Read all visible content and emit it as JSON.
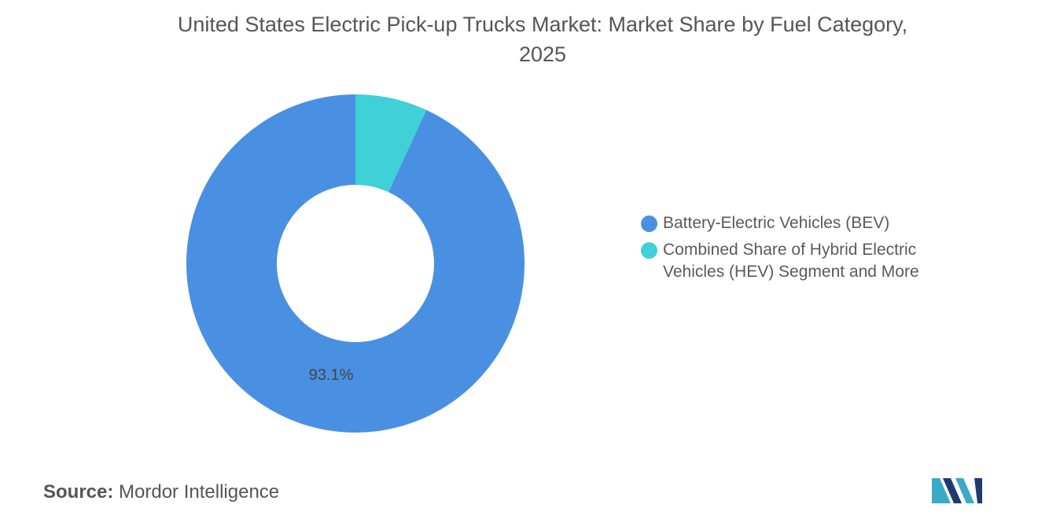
{
  "chart_data": {
    "type": "pie",
    "title_line1": "United States Electric Pick-up Trucks Market: Market Share by Fuel Category,",
    "title_line2": "2025",
    "categories": [
      "Battery-Electric Vehicles (BEV)",
      "Combined Share of Hybrid Electric Vehicles (HEV) Segment and More"
    ],
    "values": [
      93.1,
      6.9
    ],
    "data_labels": [
      "93.1%",
      ""
    ],
    "colors": [
      "#4a90e2",
      "#3fd0d8"
    ],
    "donut": true,
    "legend_position": "right"
  },
  "legend": {
    "items": [
      {
        "label": "Battery-Electric Vehicles (BEV)",
        "color": "#4a90e2"
      },
      {
        "label": "Combined Share of Hybrid Electric Vehicles (HEV) Segment and More",
        "color": "#3fd0d8"
      }
    ]
  },
  "footer": {
    "source_key": "Source:",
    "source_value": "Mordor Intelligence"
  },
  "logo": {
    "icon": "mordor-intelligence-logo",
    "colors": [
      "#1f3b6d",
      "#3aa8c7"
    ]
  }
}
